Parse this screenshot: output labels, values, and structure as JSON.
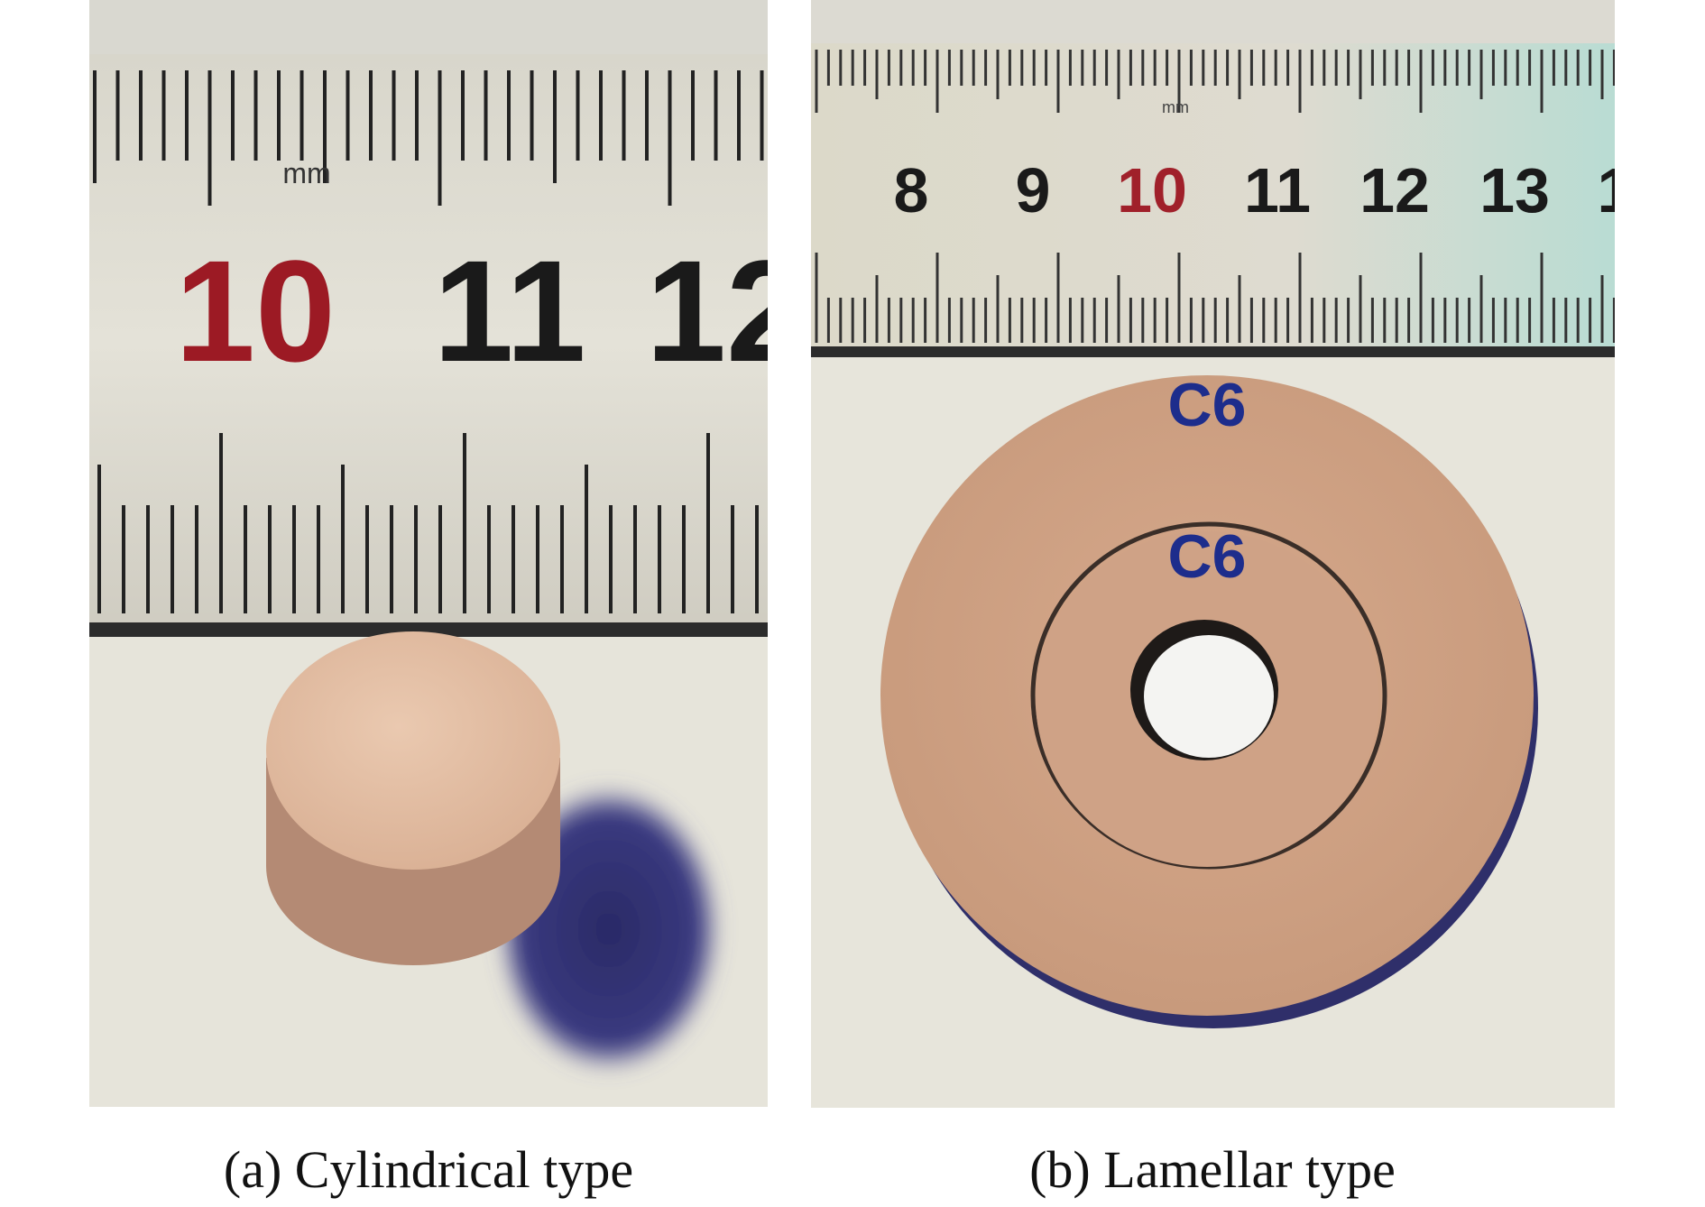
{
  "panels": [
    {
      "caption": "(a) Cylindrical type",
      "unit": "mm",
      "ruler_labels": [
        "10",
        "11",
        "12"
      ]
    },
    {
      "caption": "(b) Lamellar type",
      "unit": "mm",
      "ruler_labels": [
        "8",
        "9",
        "10",
        "11",
        "12",
        "13",
        "1"
      ],
      "sample_labels": [
        "C6",
        "C6"
      ]
    }
  ]
}
